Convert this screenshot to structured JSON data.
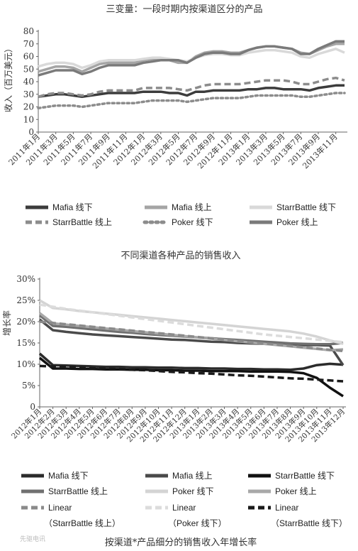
{
  "figure_caption": "按渠道*产品细分的销售收入年增长率",
  "watermark": "先驱电讯",
  "chart_data": [
    {
      "type": "line",
      "title": "三变量：一段时期内按渠道区分的产品",
      "ylabel": "收入（百万美元）",
      "xlabel": "",
      "ylim": [
        0,
        80
      ],
      "yticks": [
        0,
        10,
        20,
        30,
        40,
        50,
        60,
        70,
        80
      ],
      "grid": false,
      "legend_position": "bottom",
      "x": [
        "2011年1月",
        "2011年2月",
        "2011年3月",
        "2011年4月",
        "2011年5月",
        "2011年6月",
        "2011年7月",
        "2011年8月",
        "2011年9月",
        "2011年10月",
        "2011年11月",
        "2011年12月",
        "2012年1月",
        "2012年2月",
        "2012年3月",
        "2012年4月",
        "2012年5月",
        "2012年6月",
        "2012年7月",
        "2012年8月",
        "2012年9月",
        "2012年10月",
        "2012年11月",
        "2012年12月",
        "2013年1月",
        "2013年2月",
        "2013年3月",
        "2013年4月",
        "2013年5月",
        "2013年6月",
        "2013年7月",
        "2013年8月",
        "2013年9月",
        "2013年10月",
        "2013年11月",
        "2013年12月"
      ],
      "x_tick_labels": [
        "2011年1月",
        "2011年3月",
        "2011年5月",
        "2011年7月",
        "2011年9月",
        "2011年11月",
        "2012年1月",
        "2012年3月",
        "2012年5月",
        "2012年7月",
        "2012年9月",
        "2012年11月",
        "2013年1月",
        "2013年3月",
        "2013年5月",
        "2013年7月",
        "2013年9月",
        "2013年11月"
      ],
      "series": [
        {
          "name": "Mafia 线下",
          "color": "#3c3c3c",
          "dash": "solid",
          "values": [
            28,
            29,
            30,
            30,
            29,
            28,
            29,
            30,
            31,
            31,
            31,
            31,
            32,
            32,
            32,
            31,
            31,
            29,
            32,
            32,
            33,
            33,
            33,
            33,
            34,
            34,
            35,
            35,
            34,
            34,
            34,
            33,
            35,
            36,
            37,
            37
          ]
        },
        {
          "name": "Mafia 线上",
          "color": "#a5a5a5",
          "dash": "solid",
          "values": [
            48,
            50,
            52,
            52,
            51,
            48,
            51,
            54,
            55,
            55,
            55,
            55,
            57,
            58,
            58,
            57,
            55,
            55,
            60,
            63,
            64,
            64,
            63,
            63,
            65,
            67,
            68,
            68,
            67,
            66,
            63,
            62,
            65,
            68,
            70,
            70
          ]
        },
        {
          "name": "StarrBattle 线下",
          "color": "#d9d9d9",
          "dash": "solid",
          "values": [
            52,
            54,
            55,
            55,
            54,
            51,
            53,
            56,
            57,
            57,
            57,
            57,
            58,
            59,
            59,
            58,
            57,
            56,
            59,
            61,
            62,
            62,
            61,
            61,
            63,
            64,
            65,
            65,
            64,
            63,
            60,
            59,
            62,
            64,
            66,
            63
          ]
        },
        {
          "name": "StarrBattle 线上",
          "color": "#8c8c8c",
          "dash": "dash",
          "values": [
            28,
            30,
            31,
            31,
            30,
            29,
            30,
            32,
            33,
            33,
            33,
            33,
            35,
            35,
            35,
            35,
            34,
            33,
            35,
            37,
            38,
            38,
            38,
            38,
            39,
            40,
            41,
            41,
            41,
            40,
            38,
            38,
            40,
            42,
            43,
            41
          ]
        },
        {
          "name": "Poker 线下",
          "color": "#8c8c8c",
          "dash": "dot",
          "values": [
            19,
            20,
            21,
            21,
            21,
            20,
            21,
            22,
            23,
            23,
            23,
            23,
            24,
            25,
            25,
            25,
            25,
            24,
            25,
            26,
            27,
            27,
            27,
            27,
            28,
            29,
            29,
            29,
            29,
            29,
            28,
            28,
            29,
            30,
            31,
            31
          ]
        },
        {
          "name": "Poker 线上",
          "color": "#7a7a7a",
          "dash": "solid",
          "values": [
            45,
            47,
            49,
            49,
            49,
            46,
            48,
            51,
            53,
            53,
            53,
            53,
            55,
            56,
            57,
            57,
            57,
            55,
            59,
            62,
            63,
            63,
            62,
            62,
            65,
            67,
            68,
            68,
            67,
            66,
            62,
            62,
            66,
            69,
            72,
            72
          ]
        }
      ]
    },
    {
      "type": "line",
      "title": "不同渠道各种产品的销售收入",
      "ylabel": "增长率",
      "xlabel": "",
      "ylim": [
        0,
        30
      ],
      "yticks": [
        0,
        5,
        10,
        15,
        20,
        25,
        30
      ],
      "ytick_labels": [
        "0",
        "5%",
        "10%",
        "15%",
        "20%",
        "25%",
        "30%"
      ],
      "grid": false,
      "legend_position": "bottom",
      "x": [
        "2012年1月",
        "2012年2月",
        "2012年3月",
        "2012年4月",
        "2012年5月",
        "2012年6月",
        "2012年7月",
        "2012年8月",
        "2012年9月",
        "2012年10月",
        "2012年11月",
        "2012年12月",
        "2013年1月",
        "2013年2月",
        "2013年3月",
        "2013年4月",
        "2013年5月",
        "2013年6月",
        "2013年7月",
        "2013年8月",
        "2013年9月",
        "2013年10月",
        "2013年11月",
        "2013年12月"
      ],
      "series": [
        {
          "name": "Mafia 线下",
          "color": "#2b2b2b",
          "dash": "solid",
          "values": [
            12.5,
            9.8,
            9.7,
            9.6,
            9.5,
            9.4,
            9.4,
            9.3,
            9.3,
            9.2,
            9.2,
            9.1,
            9.1,
            9.0,
            9.0,
            8.9,
            8.9,
            8.8,
            8.8,
            8.7,
            9.0,
            9.8,
            10.1,
            9.9
          ]
        },
        {
          "name": "Mafia 线上",
          "color": "#4a4a4a",
          "dash": "solid",
          "values": [
            20.5,
            18.0,
            17.6,
            17.3,
            17.0,
            16.8,
            16.6,
            16.4,
            16.2,
            16.0,
            15.8,
            15.7,
            15.5,
            15.3,
            15.2,
            15.0,
            14.9,
            14.8,
            14.7,
            14.6,
            14.5,
            14.5,
            14.4,
            9.8
          ]
        },
        {
          "name": "StarrBattle 线下",
          "color": "#111111",
          "dash": "solid",
          "values": [
            11.5,
            9.0,
            9.0,
            8.9,
            8.9,
            8.8,
            8.8,
            8.7,
            8.7,
            8.6,
            8.6,
            8.5,
            8.5,
            8.4,
            8.4,
            8.4,
            8.3,
            8.3,
            8.3,
            8.2,
            7.9,
            6.8,
            4.5,
            2.5
          ]
        },
        {
          "name": "StarrBattle 线上",
          "color": "#707070",
          "dash": "solid",
          "values": [
            21.5,
            19.0,
            18.8,
            18.5,
            18.2,
            17.9,
            17.6,
            17.4,
            17.1,
            16.9,
            16.7,
            16.5,
            16.3,
            16.1,
            15.9,
            15.7,
            15.5,
            15.3,
            15.1,
            14.9,
            14.8,
            14.7,
            14.7,
            15.0
          ]
        },
        {
          "name": "Poker 线下",
          "color": "#d4d4d4",
          "dash": "solid",
          "values": [
            25.0,
            23.2,
            22.9,
            22.5,
            22.2,
            21.9,
            21.6,
            21.3,
            21.0,
            20.7,
            20.4,
            20.1,
            19.8,
            19.5,
            19.2,
            18.9,
            18.6,
            18.3,
            18.0,
            17.7,
            17.2,
            16.5,
            15.6,
            14.8
          ]
        },
        {
          "name": "Poker 线上",
          "color": "#a8a8a8",
          "dash": "solid",
          "values": [
            22.0,
            19.6,
            19.3,
            19.0,
            18.7,
            18.4,
            18.1,
            17.8,
            17.5,
            17.2,
            16.9,
            16.6,
            16.3,
            16.0,
            15.7,
            15.4,
            15.1,
            14.8,
            14.5,
            14.2,
            13.9,
            13.6,
            13.3,
            13.5
          ]
        },
        {
          "name": "Linear\n（StarrBattle 线上）",
          "color": "#8a8a8a",
          "dash": "dash",
          "values": [
            20.0,
            19.7,
            19.4,
            19.1,
            18.8,
            18.5,
            18.2,
            17.9,
            17.6,
            17.3,
            17.0,
            16.7,
            16.4,
            16.1,
            15.8,
            15.5,
            15.2,
            14.9,
            14.6,
            14.3,
            14.0,
            13.7,
            13.4,
            13.1
          ]
        },
        {
          "name": "Linear\n（Poker 线下）",
          "color": "#dcdcdc",
          "dash": "dash",
          "values": [
            24.0,
            23.5,
            23.0,
            22.6,
            22.2,
            21.8,
            21.4,
            21.0,
            20.6,
            20.2,
            19.8,
            19.4,
            19.0,
            18.6,
            18.2,
            17.8,
            17.4,
            17.0,
            16.7,
            16.4,
            16.1,
            15.8,
            15.5,
            15.2
          ]
        },
        {
          "name": "Linear\n（StarrBattle 线下）",
          "color": "#1a1a1a",
          "dash": "dash",
          "values": [
            9.6,
            9.5,
            9.4,
            9.3,
            9.1,
            9.0,
            8.9,
            8.7,
            8.6,
            8.4,
            8.2,
            8.1,
            7.9,
            7.8,
            7.6,
            7.4,
            7.3,
            7.1,
            6.9,
            6.7,
            6.6,
            6.4,
            6.2,
            6.0
          ]
        }
      ]
    }
  ]
}
